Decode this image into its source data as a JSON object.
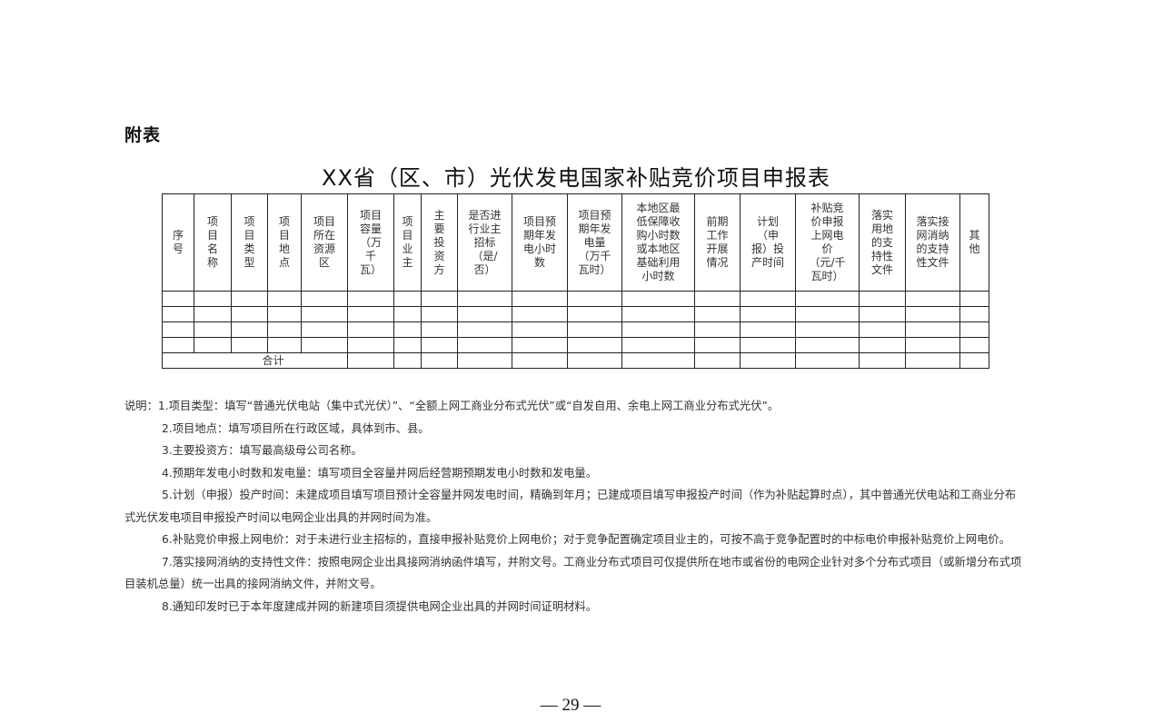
{
  "appendix_label": "附表",
  "title": "XX省（区、市）光伏发电国家补贴竞价项目申报表",
  "table": {
    "headers": [
      "序\n号",
      "项\n目\n名\n称",
      "项\n目\n类\n型",
      "项\n目\n地\n点",
      "项目\n所在\n资源\n区",
      "项目\n容量\n（万\n千\n瓦）",
      "项\n目\n业\n主",
      "主\n要\n投\n资\n方",
      "是否进\n行业主\n招标\n（是/\n否）",
      "项目预\n期年发\n电小时\n数",
      "项目预\n期年发\n电量\n（万千\n瓦时）",
      "本地区最\n低保障收\n购小时数\n或本地区\n基础利用\n小时数",
      "前期\n工作\n开展\n情况",
      "计划\n（申\n报）投\n产时间",
      "补贴竞\n价申报\n上网电\n价\n（元/千\n瓦时）",
      "落实\n用地\n的支\n持性\n文件",
      "落实接\n网消纳\n的支持\n性文件",
      "其\n他"
    ],
    "total_label": "合计"
  },
  "notes": {
    "prefix": "说明：",
    "items": [
      "1.项目类型：填写“普通光伏电站（集中式光伏）”、“全额上网工商业分布式光伏”或“自发自用、余电上网工商业分布式光伏”。",
      "2.项目地点：填写项目所在行政区域，具体到市、县。",
      "3.主要投资方：填写最高级母公司名称。",
      "4.预期年发电小时数和发电量：填写项目全容量并网后经营期预期发电小时数和发电量。",
      "5.计划（申报）投产时间：未建成项目填写项目预计全容量并网发电时间，精确到年月；已建成项目填写申报投产时间（作为补贴起算时点），其中普通光伏电站和工商业分布式光伏发电项目申报投产时间以电网企业出具的并网时间为准。",
      "6.补贴竞价申报上网电价：对于未进行业主招标的，直接申报补贴竞价上网电价；对于竞争配置确定项目业主的，可按不高于竞争配置时的中标电价申报补贴竞价上网电价。",
      "7.落实接网消纳的支持性文件：按照电网企业出具接网消纳函件填写，并附文号。工商业分布式项目可仅提供所在地市或省份的电网企业针对多个分布式项目（或新增分布式项目装机总量）统一出具的接网消纳文件，并附文号。",
      "8.通知印发时已于本年度建成并网的新建项目须提供电网企业出具的并网时间证明材料。"
    ]
  },
  "page_number": "— 29 —"
}
